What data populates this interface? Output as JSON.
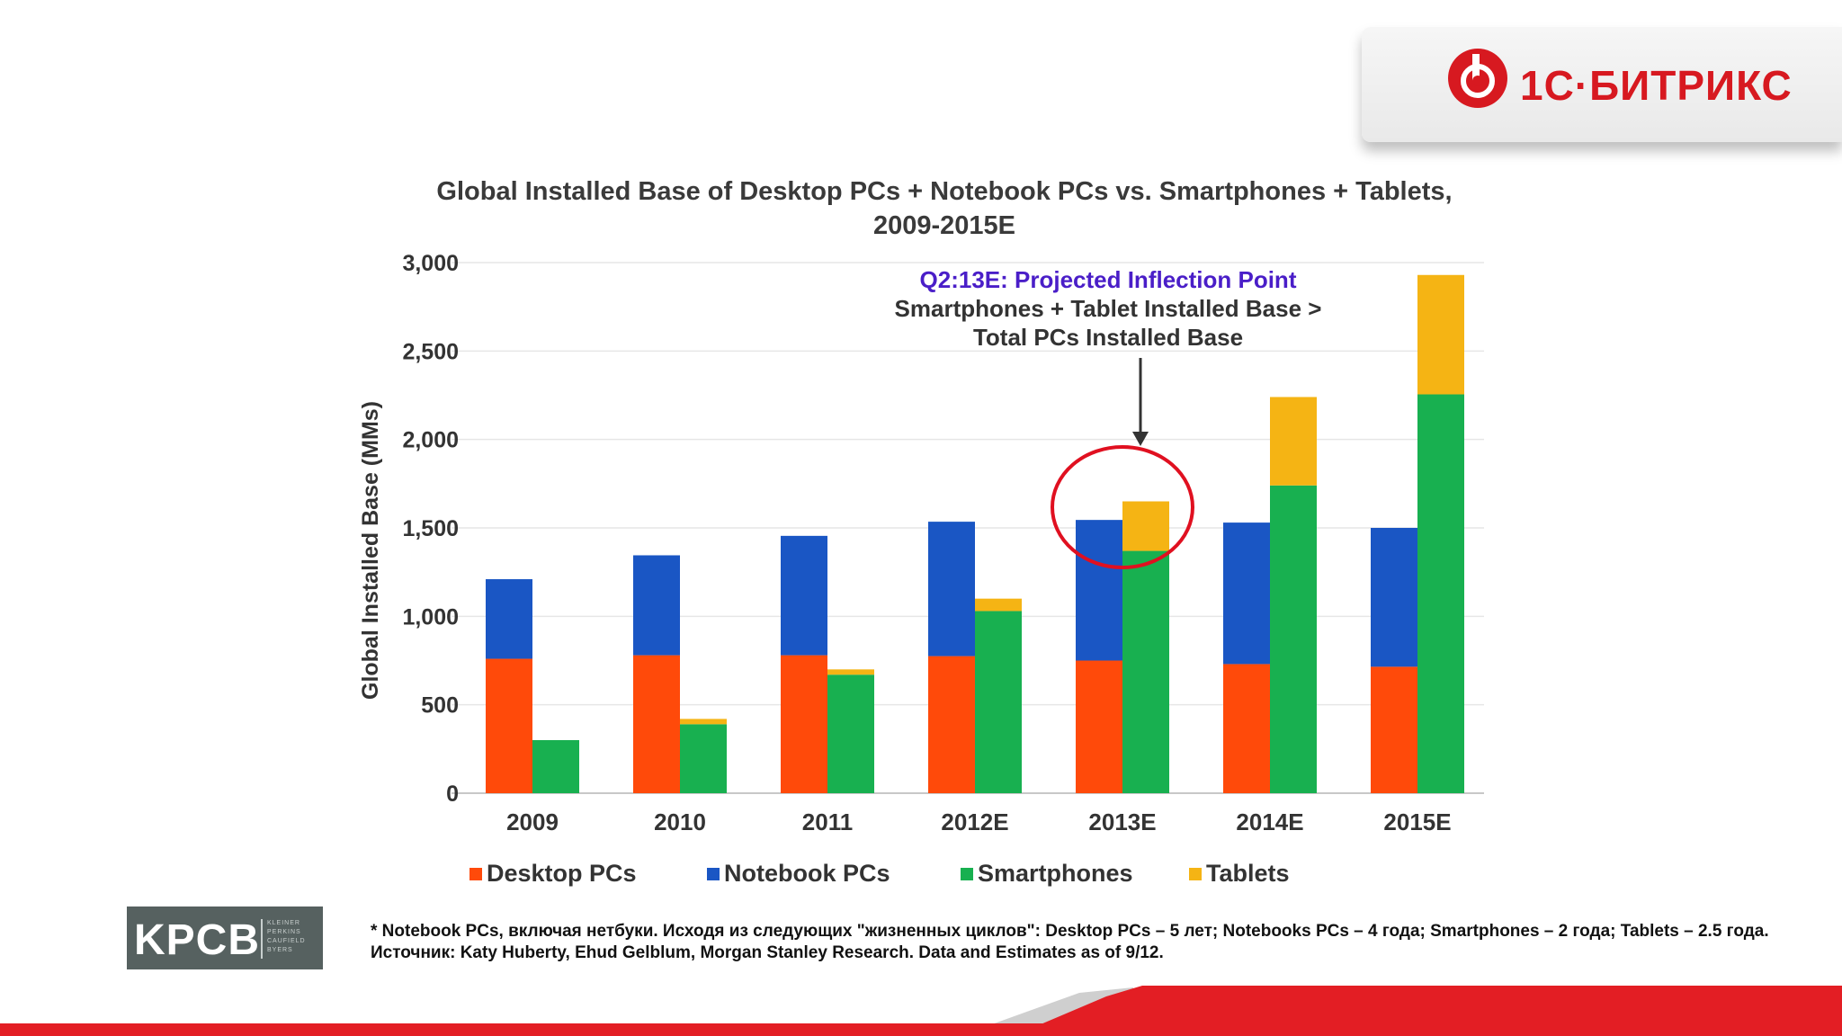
{
  "brand": {
    "name": "1С·БИТРИКС",
    "color": "#d71920"
  },
  "colors": {
    "desktop": "#ff4a0a",
    "notebook": "#1a56c4",
    "smartphones": "#18b050",
    "tablets": "#f5b414",
    "annotation": "#4a1ec8",
    "circle": "#e01020"
  },
  "chart_data": {
    "type": "bar",
    "stacked_groups": true,
    "title_lines": [
      "Global Installed Base of Desktop PCs + Notebook PCs vs. Smartphones + Tablets,",
      "2009-2015E"
    ],
    "ylabel": "Global Installed Base (MMs)",
    "xlabel": "",
    "ylim": [
      0,
      3000
    ],
    "yticks": [
      0,
      500,
      1000,
      1500,
      2000,
      2500,
      3000
    ],
    "ytick_labels": [
      "0",
      "500",
      "1,000",
      "1,500",
      "2,000",
      "2,500",
      "3,000"
    ],
    "grid": true,
    "categories": [
      "2009",
      "2010",
      "2011",
      "2012E",
      "2013E",
      "2014E",
      "2015E"
    ],
    "series": [
      {
        "name": "Desktop PCs",
        "stack": "PCs",
        "values": [
          760,
          780,
          780,
          775,
          750,
          730,
          715
        ]
      },
      {
        "name": "Notebook PCs",
        "stack": "PCs",
        "values": [
          450,
          565,
          675,
          760,
          795,
          800,
          785
        ]
      },
      {
        "name": "Smartphones",
        "stack": "Mobile",
        "values": [
          300,
          390,
          670,
          1030,
          1370,
          1740,
          2255
        ]
      },
      {
        "name": "Tablets",
        "stack": "Mobile",
        "values": [
          0,
          30,
          30,
          70,
          280,
          500,
          675
        ]
      }
    ],
    "legend": [
      "Desktop PCs",
      "Notebook PCs",
      "Smartphones",
      "Tablets"
    ],
    "legend_position": "bottom",
    "annotation": {
      "headline": "Q2:13E: Projected Inflection Point",
      "lines": [
        "Smartphones + Tablet Installed Base >",
        "Total PCs Installed Base"
      ],
      "target_category": "2013E"
    }
  },
  "kpcb": {
    "letters": "KPCB",
    "small_lines": [
      "KLEINER",
      "PERKINS",
      "CAUFIELD",
      "BYERS"
    ]
  },
  "footnote": "* Notebook PCs, включая нетбуки. Исходя из следующих \"жизненных циклов\": Desktop PCs – 5 лет; Notebooks PCs – 4 года; Smartphones – 2 года; Tablets – 2.5 года. Источник: Katy Huberty, Ehud Gelblum, Morgan Stanley Research. Data and Estimates as of 9/12."
}
